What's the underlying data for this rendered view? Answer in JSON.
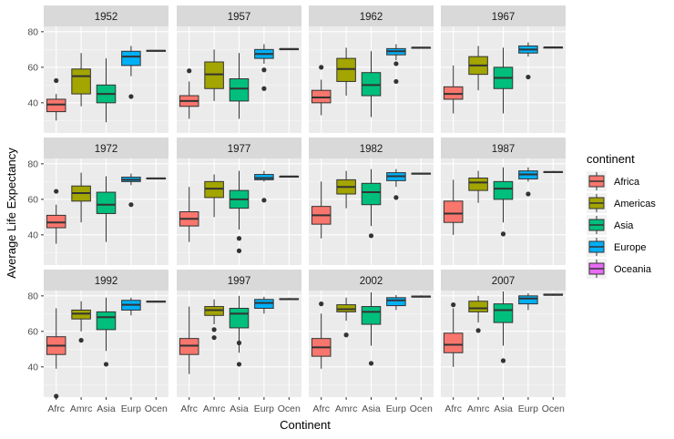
{
  "chart_data": {
    "type": "boxplot",
    "title": "",
    "xlabel": "Continent",
    "ylabel": "Average Life Expectancy",
    "ylim": [
      23,
      83
    ],
    "yticks": [
      40,
      60,
      80
    ],
    "categories": [
      "Afrc",
      "Amrc",
      "Asia",
      "Eurp",
      "Ocen"
    ],
    "continents": [
      "Africa",
      "Americas",
      "Asia",
      "Europe",
      "Oceania"
    ],
    "colors": [
      "#F8766D",
      "#A3A500",
      "#00BF7D",
      "#00B0F6",
      "#E76BF3"
    ],
    "legend_title": "continent",
    "legend_position": "right",
    "grid": true,
    "panels": [
      {
        "year": "1952",
        "boxes": [
          {
            "lw": 30,
            "q1": 35,
            "med": 39,
            "q3": 42,
            "uw": 45,
            "out": [
              52.5
            ]
          },
          {
            "lw": 38,
            "q1": 45,
            "med": 55,
            "q3": 59,
            "uw": 68,
            "out": []
          },
          {
            "lw": 29,
            "q1": 40,
            "med": 45,
            "q3": 50,
            "uw": 65,
            "out": []
          },
          {
            "lw": 55,
            "q1": 61,
            "med": 66,
            "q3": 69,
            "uw": 72,
            "out": [
              43.5
            ]
          },
          {
            "lw": 68.7,
            "q1": 69,
            "med": 69.3,
            "q3": 69.5,
            "uw": 69.7,
            "out": []
          }
        ]
      },
      {
        "year": "1957",
        "boxes": [
          {
            "lw": 31,
            "q1": 38,
            "med": 41,
            "q3": 44,
            "uw": 52,
            "out": [
              58
            ]
          },
          {
            "lw": 41,
            "q1": 48,
            "med": 56,
            "q3": 63,
            "uw": 70,
            "out": []
          },
          {
            "lw": 31,
            "q1": 41,
            "med": 48,
            "q3": 53.5,
            "uw": 68,
            "out": []
          },
          {
            "lw": 62,
            "q1": 65,
            "med": 67.5,
            "q3": 70,
            "uw": 73,
            "out": [
              48,
              58.5
            ]
          },
          {
            "lw": 70,
            "q1": 70.2,
            "med": 70.3,
            "q3": 70.4,
            "uw": 70.6,
            "out": []
          }
        ]
      },
      {
        "year": "1962",
        "boxes": [
          {
            "lw": 33,
            "q1": 40,
            "med": 43,
            "q3": 47,
            "uw": 53,
            "out": [
              60
            ]
          },
          {
            "lw": 44,
            "q1": 52,
            "med": 59,
            "q3": 65,
            "uw": 71,
            "out": []
          },
          {
            "lw": 32,
            "q1": 44,
            "med": 50,
            "q3": 57,
            "uw": 69,
            "out": []
          },
          {
            "lw": 64,
            "q1": 67,
            "med": 69,
            "q3": 70.5,
            "uw": 73,
            "out": [
              52,
              62
            ]
          },
          {
            "lw": 70.8,
            "q1": 71,
            "med": 71.1,
            "q3": 71.2,
            "uw": 71.3,
            "out": []
          }
        ]
      },
      {
        "year": "1967",
        "boxes": [
          {
            "lw": 34,
            "q1": 42,
            "med": 45,
            "q3": 49,
            "uw": 61,
            "out": []
          },
          {
            "lw": 47,
            "q1": 56,
            "med": 61,
            "q3": 66,
            "uw": 72,
            "out": []
          },
          {
            "lw": 34,
            "q1": 48,
            "med": 54,
            "q3": 60,
            "uw": 71,
            "out": []
          },
          {
            "lw": 66,
            "q1": 68,
            "med": 70,
            "q3": 72,
            "uw": 74,
            "out": [
              54.5
            ]
          },
          {
            "lw": 71,
            "q1": 71.1,
            "med": 71.2,
            "q3": 71.3,
            "uw": 71.5,
            "out": []
          }
        ]
      },
      {
        "year": "1972",
        "boxes": [
          {
            "lw": 35,
            "q1": 44,
            "med": 47,
            "q3": 51,
            "uw": 57,
            "out": [
              64.5
            ]
          },
          {
            "lw": 47,
            "q1": 59,
            "med": 63.5,
            "q3": 67.5,
            "uw": 75,
            "out": []
          },
          {
            "lw": 36,
            "q1": 52,
            "med": 57,
            "q3": 64,
            "uw": 73,
            "out": []
          },
          {
            "lw": 68,
            "q1": 70,
            "med": 71,
            "q3": 72.5,
            "uw": 74.5,
            "out": [
              57
            ]
          },
          {
            "lw": 71.4,
            "q1": 71.6,
            "med": 71.8,
            "q3": 72,
            "uw": 72.2,
            "out": []
          }
        ]
      },
      {
        "year": "1977",
        "boxes": [
          {
            "lw": 36,
            "q1": 45,
            "med": 49,
            "q3": 53,
            "uw": 67,
            "out": []
          },
          {
            "lw": 50,
            "q1": 61,
            "med": 66,
            "q3": 70,
            "uw": 74,
            "out": []
          },
          {
            "lw": 43,
            "q1": 55,
            "med": 60,
            "q3": 65,
            "uw": 76,
            "out": [
              38,
              31
            ]
          },
          {
            "lw": 70,
            "q1": 71,
            "med": 72,
            "q3": 74,
            "uw": 76,
            "out": [
              59.5
            ]
          },
          {
            "lw": 72.5,
            "q1": 72.7,
            "med": 72.9,
            "q3": 73,
            "uw": 73.2,
            "out": []
          }
        ]
      },
      {
        "year": "1982",
        "boxes": [
          {
            "lw": 38,
            "q1": 46,
            "med": 51,
            "q3": 56,
            "uw": 70,
            "out": []
          },
          {
            "lw": 55,
            "q1": 63,
            "med": 67,
            "q3": 71,
            "uw": 76,
            "out": []
          },
          {
            "lw": 45,
            "q1": 57,
            "med": 64,
            "q3": 69,
            "uw": 77,
            "out": [
              39.5
            ]
          },
          {
            "lw": 67,
            "q1": 70.5,
            "med": 73,
            "q3": 75,
            "uw": 77,
            "out": [
              61
            ]
          },
          {
            "lw": 74,
            "q1": 74.3,
            "med": 74.5,
            "q3": 74.7,
            "uw": 75,
            "out": []
          }
        ]
      },
      {
        "year": "1987",
        "boxes": [
          {
            "lw": 40,
            "q1": 47,
            "med": 52,
            "q3": 59,
            "uw": 71,
            "out": []
          },
          {
            "lw": 58,
            "q1": 65,
            "med": 69.5,
            "q3": 72,
            "uw": 76,
            "out": []
          },
          {
            "lw": 47,
            "q1": 60,
            "med": 66,
            "q3": 70,
            "uw": 78,
            "out": [
              40.5
            ]
          },
          {
            "lw": 70,
            "q1": 71.5,
            "med": 74,
            "q3": 76,
            "uw": 78,
            "out": [
              63
            ]
          },
          {
            "lw": 75,
            "q1": 75.2,
            "med": 75.4,
            "q3": 75.6,
            "uw": 76,
            "out": []
          }
        ]
      },
      {
        "year": "1992",
        "boxes": [
          {
            "lw": 39,
            "q1": 47,
            "med": 52,
            "q3": 57,
            "uw": 73,
            "out": [
              23.5
            ]
          },
          {
            "lw": 60,
            "q1": 67,
            "med": 70,
            "q3": 72,
            "uw": 77,
            "out": [
              55
            ]
          },
          {
            "lw": 49,
            "q1": 61,
            "med": 68,
            "q3": 71,
            "uw": 79,
            "out": [
              41.5
            ]
          },
          {
            "lw": 69,
            "q1": 72,
            "med": 75,
            "q3": 77.5,
            "uw": 79,
            "out": []
          },
          {
            "lw": 76.3,
            "q1": 76.5,
            "med": 76.8,
            "q3": 77,
            "uw": 77.3,
            "out": []
          }
        ]
      },
      {
        "year": "1997",
        "boxes": [
          {
            "lw": 36,
            "q1": 47,
            "med": 52,
            "q3": 56,
            "uw": 74,
            "out": []
          },
          {
            "lw": 64,
            "q1": 69,
            "med": 72,
            "q3": 74,
            "uw": 78,
            "out": [
              56.5,
              61
            ]
          },
          {
            "lw": 48,
            "q1": 62,
            "med": 70,
            "q3": 73,
            "uw": 80,
            "out": [
              41.5,
              53.5
            ]
          },
          {
            "lw": 70,
            "q1": 73,
            "med": 76,
            "q3": 78,
            "uw": 79.5,
            "out": []
          },
          {
            "lw": 77.8,
            "q1": 78,
            "med": 78.2,
            "q3": 78.4,
            "uw": 78.8,
            "out": []
          }
        ]
      },
      {
        "year": "2002",
        "boxes": [
          {
            "lw": 39,
            "q1": 46,
            "med": 51,
            "q3": 56,
            "uw": 70,
            "out": [
              75.5
            ]
          },
          {
            "lw": 66,
            "q1": 71,
            "med": 72.5,
            "q3": 75,
            "uw": 79,
            "out": [
              58
            ]
          },
          {
            "lw": 52,
            "q1": 64,
            "med": 71,
            "q3": 74,
            "uw": 82,
            "out": [
              42
            ]
          },
          {
            "lw": 72,
            "q1": 74.5,
            "med": 77.5,
            "q3": 79,
            "uw": 80.5,
            "out": []
          },
          {
            "lw": 79,
            "q1": 79.3,
            "med": 79.6,
            "q3": 79.9,
            "uw": 80.3,
            "out": []
          }
        ]
      },
      {
        "year": "2007",
        "boxes": [
          {
            "lw": 40,
            "q1": 48,
            "med": 52.5,
            "q3": 59,
            "uw": 73,
            "out": [
              75
            ]
          },
          {
            "lw": 65,
            "q1": 71,
            "med": 73,
            "q3": 77,
            "uw": 80,
            "out": [
              60.5
            ]
          },
          {
            "lw": 52,
            "q1": 65,
            "med": 72,
            "q3": 75.5,
            "uw": 82.5,
            "out": [
              43.5
            ]
          },
          {
            "lw": 72,
            "q1": 75.5,
            "med": 78.5,
            "q3": 80,
            "uw": 81.5,
            "out": []
          },
          {
            "lw": 80.1,
            "q1": 80.3,
            "med": 80.7,
            "q3": 81,
            "uw": 81.3,
            "out": []
          }
        ]
      }
    ]
  }
}
